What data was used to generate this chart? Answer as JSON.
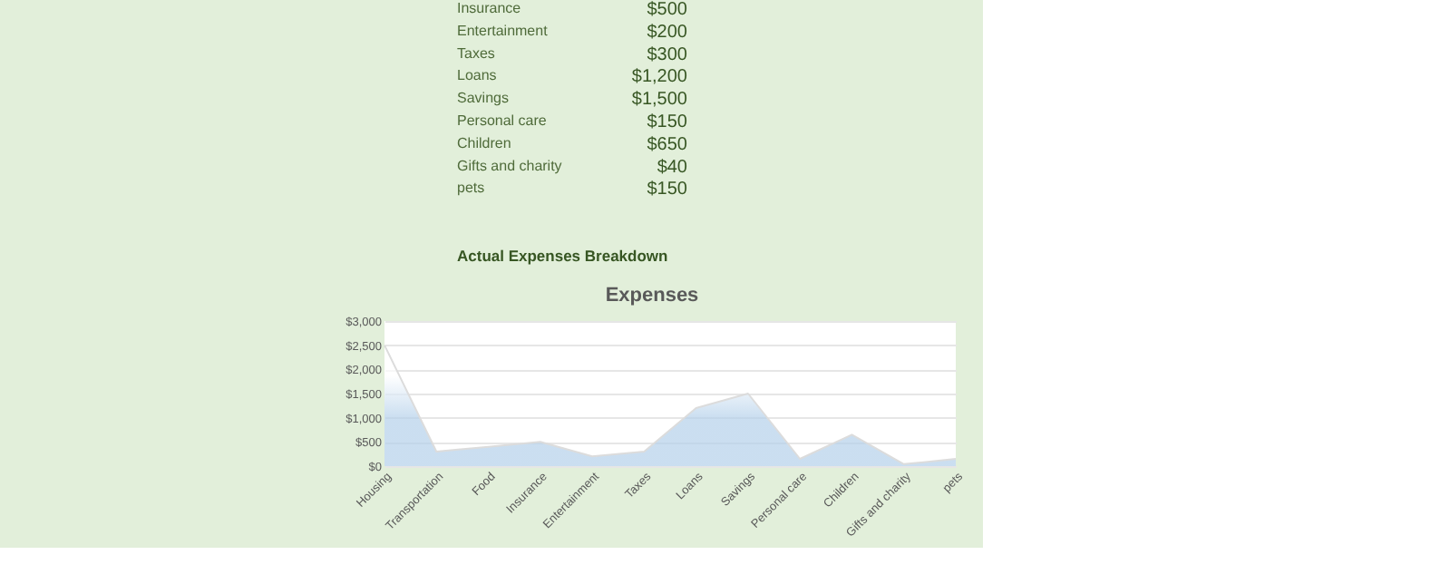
{
  "chart_data": {
    "type": "area",
    "title": "Expenses",
    "categories": [
      "Housing",
      "Transportation",
      "Food",
      "Insurance",
      "Entertainment",
      "Taxes",
      "Loans",
      "Savings",
      "Personal care",
      "Children",
      "Gifts and charity",
      "pets"
    ],
    "series": [
      {
        "color": "#b4d0ea",
        "values": [
          2500,
          300,
          400,
          500,
          200,
          300,
          1200,
          1500,
          150,
          650,
          40,
          150
        ]
      }
    ],
    "ylim": [
      0,
      3000
    ],
    "yticks": [
      {
        "value": 0,
        "label": "$0"
      },
      {
        "value": 500,
        "label": "$500"
      },
      {
        "value": 1000,
        "label": "$1,000"
      },
      {
        "value": 1500,
        "label": "$1,500"
      },
      {
        "value": 2000,
        "label": "$2,000"
      },
      {
        "value": 2500,
        "label": "$2,500"
      },
      {
        "value": 3000,
        "label": "$3,000"
      }
    ],
    "grid": "y",
    "annotations": [
      "Insurance",
      "$500",
      "Entertainment",
      "$200",
      "Taxes",
      "$300",
      "Loans",
      "$1,200",
      "Savings",
      "$1,500",
      "Personal care",
      "$150",
      "Children",
      "$650",
      "Gifts and charity",
      "$40",
      "pets",
      "$150",
      "Actual Expenses Breakdown"
    ]
  }
}
